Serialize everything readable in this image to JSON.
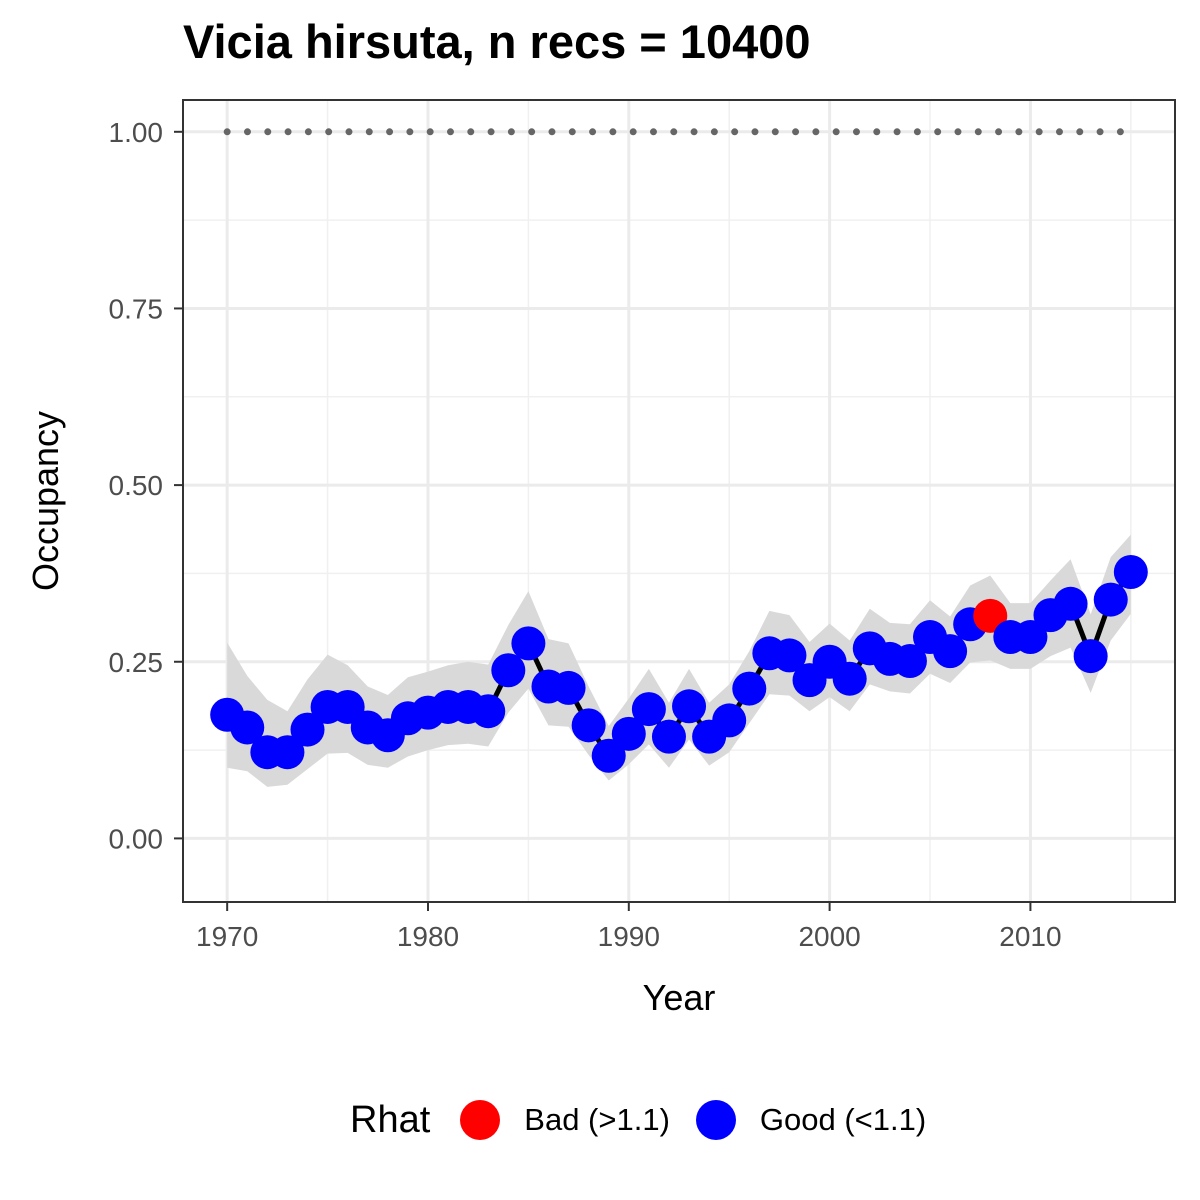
{
  "chart_data": {
    "type": "line",
    "title": "Vicia hirsuta, n recs = 10400",
    "xlabel": "Year",
    "ylabel": "Occupancy",
    "xlim": [
      1967.8,
      2017.2
    ],
    "ylim": [
      -0.09,
      1.045
    ],
    "xticks": [
      1970,
      1980,
      1990,
      2000,
      2010
    ],
    "yticks": [
      0.0,
      0.25,
      0.5,
      0.75,
      1.0
    ],
    "ytick_labels": [
      "0.00",
      "0.25",
      "0.50",
      "0.75",
      "1.00"
    ],
    "grid": true,
    "x": [
      1970,
      1971,
      1972,
      1973,
      1974,
      1975,
      1976,
      1977,
      1978,
      1979,
      1980,
      1981,
      1982,
      1983,
      1984,
      1985,
      1986,
      1987,
      1988,
      1989,
      1990,
      1991,
      1992,
      1993,
      1994,
      1995,
      1996,
      1997,
      1998,
      1999,
      2000,
      2001,
      2002,
      2003,
      2004,
      2005,
      2006,
      2007,
      2008,
      2009,
      2010,
      2011,
      2012,
      2013,
      2014,
      2015
    ],
    "y": [
      0.175,
      0.157,
      0.122,
      0.122,
      0.154,
      0.186,
      0.186,
      0.157,
      0.146,
      0.17,
      0.178,
      0.186,
      0.186,
      0.18,
      0.238,
      0.276,
      0.215,
      0.213,
      0.16,
      0.117,
      0.148,
      0.183,
      0.144,
      0.187,
      0.144,
      0.167,
      0.212,
      0.262,
      0.259,
      0.224,
      0.25,
      0.226,
      0.269,
      0.254,
      0.251,
      0.285,
      0.265,
      0.303,
      0.315,
      0.285,
      0.285,
      0.316,
      0.332,
      0.258,
      0.338,
      0.377
    ],
    "lower": [
      0.1,
      0.095,
      0.073,
      0.076,
      0.098,
      0.12,
      0.121,
      0.104,
      0.1,
      0.116,
      0.125,
      0.132,
      0.134,
      0.13,
      0.178,
      0.212,
      0.16,
      0.158,
      0.118,
      0.082,
      0.105,
      0.133,
      0.1,
      0.14,
      0.103,
      0.122,
      0.163,
      0.204,
      0.202,
      0.18,
      0.2,
      0.18,
      0.218,
      0.208,
      0.205,
      0.233,
      0.22,
      0.249,
      0.252,
      0.24,
      0.24,
      0.258,
      0.27,
      0.206,
      0.28,
      0.318
    ],
    "upper": [
      0.277,
      0.23,
      0.196,
      0.18,
      0.225,
      0.26,
      0.245,
      0.215,
      0.203,
      0.228,
      0.236,
      0.245,
      0.25,
      0.246,
      0.302,
      0.35,
      0.282,
      0.276,
      0.215,
      0.159,
      0.198,
      0.24,
      0.192,
      0.24,
      0.192,
      0.218,
      0.265,
      0.322,
      0.316,
      0.278,
      0.304,
      0.28,
      0.325,
      0.305,
      0.303,
      0.337,
      0.314,
      0.358,
      0.372,
      0.333,
      0.333,
      0.365,
      0.395,
      0.317,
      0.398,
      0.43
    ],
    "rhat": [
      "Good",
      "Good",
      "Good",
      "Good",
      "Good",
      "Good",
      "Good",
      "Good",
      "Good",
      "Good",
      "Good",
      "Good",
      "Good",
      "Good",
      "Good",
      "Good",
      "Good",
      "Good",
      "Good",
      "Good",
      "Good",
      "Good",
      "Good",
      "Good",
      "Good",
      "Good",
      "Good",
      "Good",
      "Good",
      "Good",
      "Good",
      "Good",
      "Good",
      "Good",
      "Good",
      "Good",
      "Good",
      "Good",
      "Bad",
      "Good",
      "Good",
      "Good",
      "Good",
      "Good",
      "Good",
      "Good"
    ],
    "reference_line": {
      "y": 1.0,
      "style": "dotted",
      "color": "#666666"
    },
    "ribbon_color": "#d9d9d9",
    "line_color": "#000000",
    "legend": {
      "title": "Rhat",
      "placement": "bottom",
      "items": [
        {
          "key": "Bad",
          "label": "Bad (>1.1)",
          "color": "#ff0000"
        },
        {
          "key": "Good",
          "label": "Good (<1.1)",
          "color": "#0000ff"
        }
      ]
    }
  }
}
